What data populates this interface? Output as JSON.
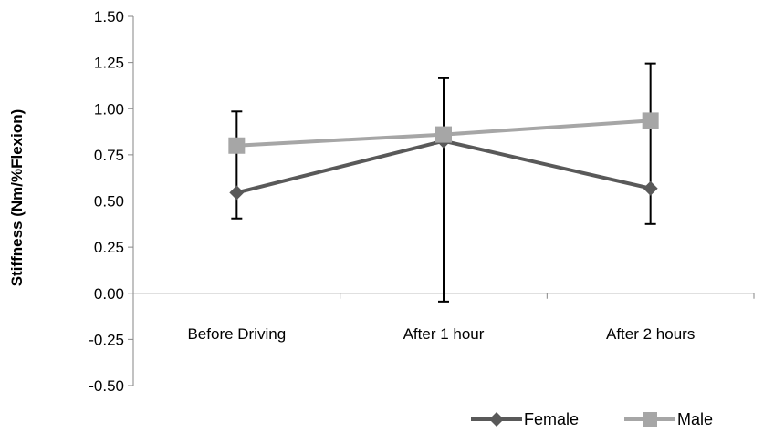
{
  "chart_data": {
    "type": "line",
    "categories": [
      "Before Driving",
      "After 1 hour",
      "After 2 hours"
    ],
    "ylabel": "Stiffness (Nm/%Flexion)",
    "ylim": [
      -0.5,
      1.5
    ],
    "ytick_labels": [
      "1.50",
      "1.25",
      "1.00",
      "0.75",
      "0.50",
      "0.25",
      "0.00",
      "-0.25",
      "-0.50"
    ],
    "grid": false,
    "legend_position": "bottom-right",
    "series": [
      {
        "name": "Female",
        "values": [
          0.545,
          0.825,
          0.568
        ],
        "error_low": [
          0.405,
          -0.045,
          0.375
        ],
        "error_high": [
          0.985,
          1.165,
          1.245
        ],
        "color": "#595959",
        "marker": "diamond"
      },
      {
        "name": "Male",
        "values": [
          0.8,
          0.86,
          0.935
        ],
        "color": "#a6a6a6",
        "marker": "square"
      }
    ]
  }
}
